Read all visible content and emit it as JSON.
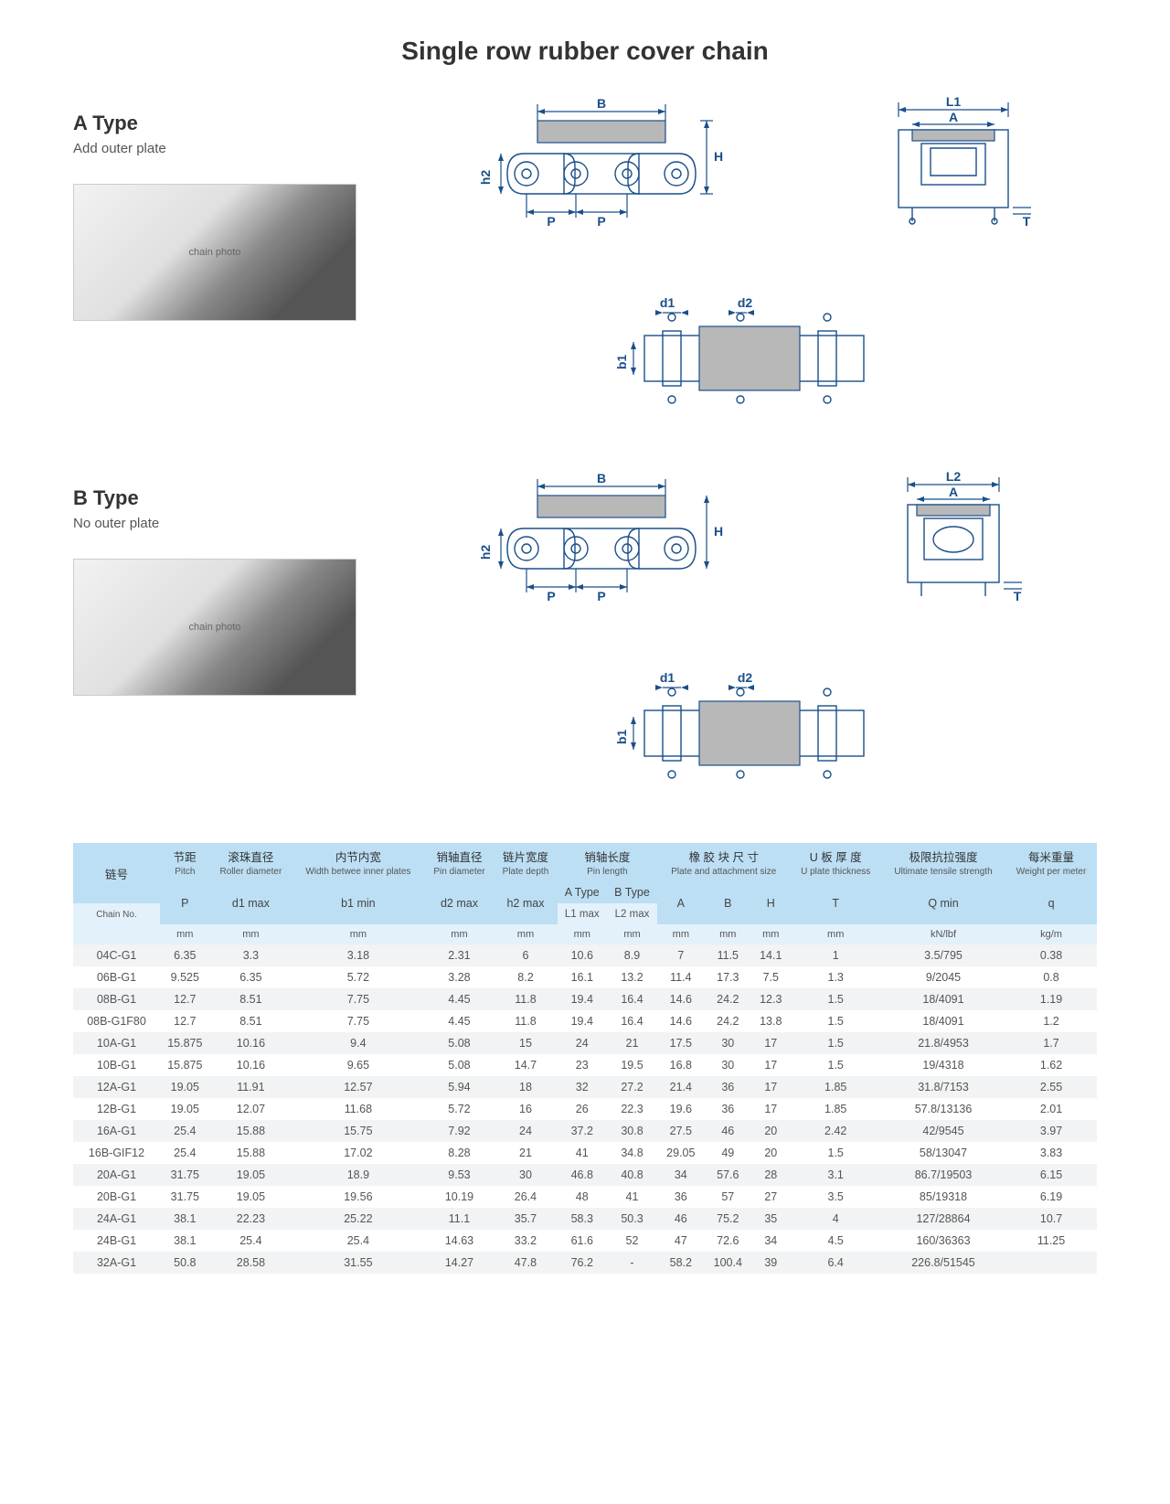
{
  "title": "Single row rubber cover chain",
  "typeA": {
    "heading": "A  Type",
    "sub": "Add outer plate"
  },
  "typeB": {
    "heading": "B  Type",
    "sub": "No outer plate"
  },
  "dims": {
    "B": "B",
    "H": "H",
    "h2": "h2",
    "P": "P",
    "d1": "d1",
    "d2": "d2",
    "b1": "b1",
    "L1": "L1",
    "L2": "L2",
    "A": "A",
    "T": "T"
  },
  "table": {
    "headers": {
      "chainNo": {
        "cn": "链号",
        "en": "Chain No."
      },
      "pitch": {
        "cn": "节距",
        "en": "Pitch"
      },
      "roller": {
        "cn": "滚珠直径",
        "en": "Roller diameter"
      },
      "width": {
        "cn": "内节内宽",
        "en": "Width betwee inner plates"
      },
      "pin": {
        "cn": "销轴直径",
        "en": "Pin diameter"
      },
      "plate": {
        "cn": "链片宽度",
        "en": "Plate depth"
      },
      "pinlen": {
        "cn": "销轴长度",
        "en": "Pin length"
      },
      "attach": {
        "cn": "橡 胶 块 尺 寸",
        "en": "Plate and attachment size"
      },
      "uplate": {
        "cn": "U 板 厚 度",
        "en": "U plate thickness"
      },
      "tensile": {
        "cn": "极限抗拉强度",
        "en": "Ultimate tensile strength"
      },
      "weight": {
        "cn": "每米重量",
        "en": "Weight per meter"
      }
    },
    "subheaders": {
      "P": "P",
      "d1max": "d1 max",
      "b1min": "b1 min",
      "d2max": "d2 max",
      "h2max": "h2 max",
      "L1max": "L1 max",
      "L2max": "L2 max",
      "A": "A",
      "B": "B",
      "H": "H",
      "T": "T",
      "Qmin": "Q min",
      "q": "q",
      "Atype": "A Type",
      "Btype": "B Type"
    },
    "units": {
      "mm": "mm",
      "kn": "kN/lbf",
      "kgm": "kg/m"
    },
    "rows": [
      [
        "04C-G1",
        "6.35",
        "3.3",
        "3.18",
        "2.31",
        "6",
        "10.6",
        "8.9",
        "7",
        "11.5",
        "14.1",
        "1",
        "3.5/795",
        "0.38"
      ],
      [
        "06B-G1",
        "9.525",
        "6.35",
        "5.72",
        "3.28",
        "8.2",
        "16.1",
        "13.2",
        "11.4",
        "17.3",
        "7.5",
        "1.3",
        "9/2045",
        "0.8"
      ],
      [
        "08B-G1",
        "12.7",
        "8.51",
        "7.75",
        "4.45",
        "11.8",
        "19.4",
        "16.4",
        "14.6",
        "24.2",
        "12.3",
        "1.5",
        "18/4091",
        "1.19"
      ],
      [
        "08B-G1F80",
        "12.7",
        "8.51",
        "7.75",
        "4.45",
        "11.8",
        "19.4",
        "16.4",
        "14.6",
        "24.2",
        "13.8",
        "1.5",
        "18/4091",
        "1.2"
      ],
      [
        "10A-G1",
        "15.875",
        "10.16",
        "9.4",
        "5.08",
        "15",
        "24",
        "21",
        "17.5",
        "30",
        "17",
        "1.5",
        "21.8/4953",
        "1.7"
      ],
      [
        "10B-G1",
        "15.875",
        "10.16",
        "9.65",
        "5.08",
        "14.7",
        "23",
        "19.5",
        "16.8",
        "30",
        "17",
        "1.5",
        "19/4318",
        "1.62"
      ],
      [
        "12A-G1",
        "19.05",
        "11.91",
        "12.57",
        "5.94",
        "18",
        "32",
        "27.2",
        "21.4",
        "36",
        "17",
        "1.85",
        "31.8/7153",
        "2.55"
      ],
      [
        "12B-G1",
        "19.05",
        "12.07",
        "11.68",
        "5.72",
        "16",
        "26",
        "22.3",
        "19.6",
        "36",
        "17",
        "1.85",
        "57.8/13136",
        "2.01"
      ],
      [
        "16A-G1",
        "25.4",
        "15.88",
        "15.75",
        "7.92",
        "24",
        "37.2",
        "30.8",
        "27.5",
        "46",
        "20",
        "2.42",
        "42/9545",
        "3.97"
      ],
      [
        "16B-GIF12",
        "25.4",
        "15.88",
        "17.02",
        "8.28",
        "21",
        "41",
        "34.8",
        "29.05",
        "49",
        "20",
        "1.5",
        "58/13047",
        "3.83"
      ],
      [
        "20A-G1",
        "31.75",
        "19.05",
        "18.9",
        "9.53",
        "30",
        "46.8",
        "40.8",
        "34",
        "57.6",
        "28",
        "3.1",
        "86.7/19503",
        "6.15"
      ],
      [
        "20B-G1",
        "31.75",
        "19.05",
        "19.56",
        "10.19",
        "26.4",
        "48",
        "41",
        "36",
        "57",
        "27",
        "3.5",
        "85/19318",
        "6.19"
      ],
      [
        "24A-G1",
        "38.1",
        "22.23",
        "25.22",
        "11.1",
        "35.7",
        "58.3",
        "50.3",
        "46",
        "75.2",
        "35",
        "4",
        "127/28864",
        "10.7"
      ],
      [
        "24B-G1",
        "38.1",
        "25.4",
        "25.4",
        "14.63",
        "33.2",
        "61.6",
        "52",
        "47",
        "72.6",
        "34",
        "4.5",
        "160/36363",
        "11.25"
      ],
      [
        "32A-G1",
        "50.8",
        "28.58",
        "31.55",
        "14.27",
        "47.8",
        "76.2",
        "-",
        "58.2",
        "100.4",
        "39",
        "6.4",
        "226.8/51545",
        ""
      ]
    ]
  },
  "colors": {
    "headerBg": "#bcdff4",
    "subBg": "#e3f1fb",
    "rowAlt": "#f1f3f4",
    "line": "#1a4f8a"
  }
}
